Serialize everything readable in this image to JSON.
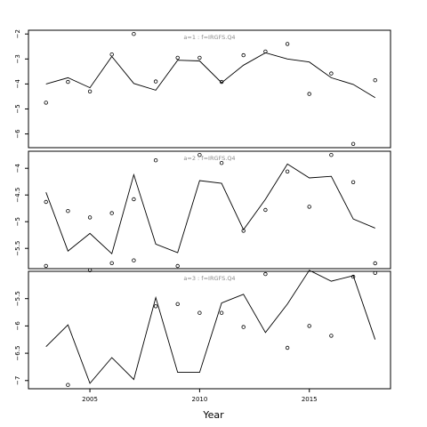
{
  "chart_data": [
    {
      "type": "line",
      "title": "a=1 : f=IRGFS.Q4",
      "x": [
        2003,
        2004,
        2005,
        2006,
        2007,
        2008,
        2009,
        2010,
        2011,
        2012,
        2013,
        2014,
        2015,
        2016,
        2017,
        2018
      ],
      "series": [
        {
          "style": "line",
          "values": [
            -4.0,
            -3.75,
            -4.15,
            -2.9,
            -3.98,
            -4.25,
            -3.05,
            -3.08,
            -3.95,
            -3.25,
            -2.75,
            -3.0,
            -3.12,
            -3.75,
            -4.02,
            -4.55
          ]
        },
        {
          "style": "points",
          "values": [
            -4.75,
            -3.92,
            -4.3,
            -2.82,
            -2.0,
            -3.9,
            -2.95,
            -2.95,
            -3.92,
            -2.85,
            -2.7,
            -2.4,
            -4.4,
            -3.58,
            -6.4,
            -3.85
          ]
        }
      ],
      "yticks": [
        -6,
        -5,
        -4,
        -3,
        -2
      ],
      "ylim": [
        -6.55,
        -1.85
      ]
    },
    {
      "type": "line",
      "title": "a=2 : f=IRGFS.Q4",
      "x": [
        2003,
        2004,
        2005,
        2006,
        2007,
        2008,
        2009,
        2010,
        2011,
        2012,
        2013,
        2014,
        2015,
        2016,
        2017,
        2018
      ],
      "series": [
        {
          "style": "line",
          "values": [
            -4.45,
            -5.55,
            -5.22,
            -5.6,
            -4.12,
            -5.42,
            -5.58,
            -4.23,
            -4.28,
            -5.15,
            -4.58,
            -3.92,
            -4.18,
            -4.15,
            -4.95,
            -5.12
          ]
        },
        {
          "style": "points",
          "values": [
            -4.63,
            -4.8,
            -4.92,
            -4.84,
            -4.58,
            -3.85,
            -5.83,
            -3.75,
            -3.9,
            -5.17,
            -4.78,
            -4.06,
            -4.72,
            -3.75,
            -4.26,
            -5.78
          ]
        }
      ],
      "yticks": [
        -5.5,
        -5.0,
        -4.5,
        -4.0
      ],
      "ylim": [
        -5.88,
        -3.68
      ]
    },
    {
      "type": "line",
      "title": "a=3 : f=IRGFS.Q4",
      "x": [
        2003,
        2004,
        2005,
        2006,
        2007,
        2008,
        2009,
        2010,
        2011,
        2012,
        2013,
        2014,
        2015,
        2016,
        2017,
        2018
      ],
      "series": [
        {
          "style": "line",
          "values": [
            -6.38,
            -5.98,
            -7.05,
            -6.58,
            -6.98,
            -5.48,
            -6.85,
            -6.85,
            -5.58,
            -5.42,
            -6.12,
            -5.6,
            -4.98,
            -5.18,
            -5.08,
            -6.25
          ]
        },
        {
          "style": "points",
          "values": [
            -4.9,
            -7.08,
            -4.98,
            -4.85,
            -4.8,
            -5.64,
            -5.6,
            -5.76,
            -5.76,
            -6.02,
            -5.05,
            -6.4,
            -6.0,
            -6.18,
            -5.1,
            -5.03
          ]
        }
      ],
      "yticks": [
        -7.0,
        -6.5,
        -6.0,
        -5.5
      ],
      "ylim": [
        -7.15,
        -5.0
      ]
    }
  ],
  "xaxis": {
    "label": "Year",
    "ticks": [
      2005,
      2010,
      2015
    ],
    "xlim": [
      2002.2,
      2018.7
    ]
  }
}
